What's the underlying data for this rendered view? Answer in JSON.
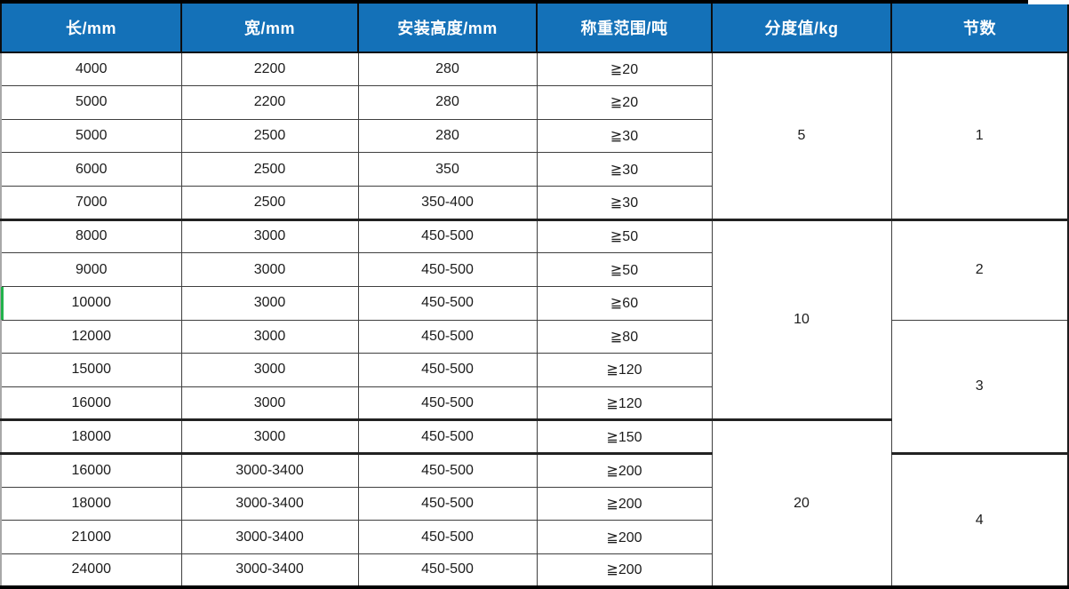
{
  "table": {
    "columns": [
      {
        "label": "长/mm"
      },
      {
        "label": "宽/mm"
      },
      {
        "label": "安装高度/mm"
      },
      {
        "label": "称重范围/吨"
      },
      {
        "label": "分度值/kg"
      },
      {
        "label": "节数"
      }
    ],
    "rows": [
      [
        "4000",
        "2200",
        "280",
        "≧20"
      ],
      [
        "5000",
        "2200",
        "280",
        "≧20"
      ],
      [
        "5000",
        "2500",
        "280",
        "≧30"
      ],
      [
        "6000",
        "2500",
        "350",
        "≧30"
      ],
      [
        "7000",
        "2500",
        "350-400",
        "≧30"
      ],
      [
        "8000",
        "3000",
        "450-500",
        "≧50"
      ],
      [
        "9000",
        "3000",
        "450-500",
        "≧50"
      ],
      [
        "10000",
        "3000",
        "450-500",
        "≧60"
      ],
      [
        "12000",
        "3000",
        "450-500",
        "≧80"
      ],
      [
        "15000",
        "3000",
        "450-500",
        "≧120"
      ],
      [
        "16000",
        "3000",
        "450-500",
        "≧120"
      ],
      [
        "18000",
        "3000",
        "450-500",
        "≧150"
      ],
      [
        "16000",
        "3000-3400",
        "450-500",
        "≧200"
      ],
      [
        "18000",
        "3000-3400",
        "450-500",
        "≧200"
      ],
      [
        "21000",
        "3000-3400",
        "450-500",
        "≧200"
      ],
      [
        "24000",
        "3000-3400",
        "450-500",
        "≧200"
      ]
    ],
    "division_groups": [
      {
        "value": "5",
        "start": 0,
        "span": 5
      },
      {
        "value": "10",
        "start": 5,
        "span": 6
      },
      {
        "value": "20",
        "start": 11,
        "span": 5
      }
    ],
    "section_groups": [
      {
        "value": "1",
        "start": 0,
        "span": 5
      },
      {
        "value": "2",
        "start": 5,
        "span": 3
      },
      {
        "value": "3",
        "start": 8,
        "span": 4
      },
      {
        "value": "4",
        "start": 12,
        "span": 4
      }
    ],
    "thick_after_rows": [
      4,
      10,
      11
    ]
  },
  "colors": {
    "header_bg": "#1471b8",
    "header_text": "#ffffff",
    "grid_line": "#3f3f3f",
    "selection_green": "#22b24c"
  }
}
